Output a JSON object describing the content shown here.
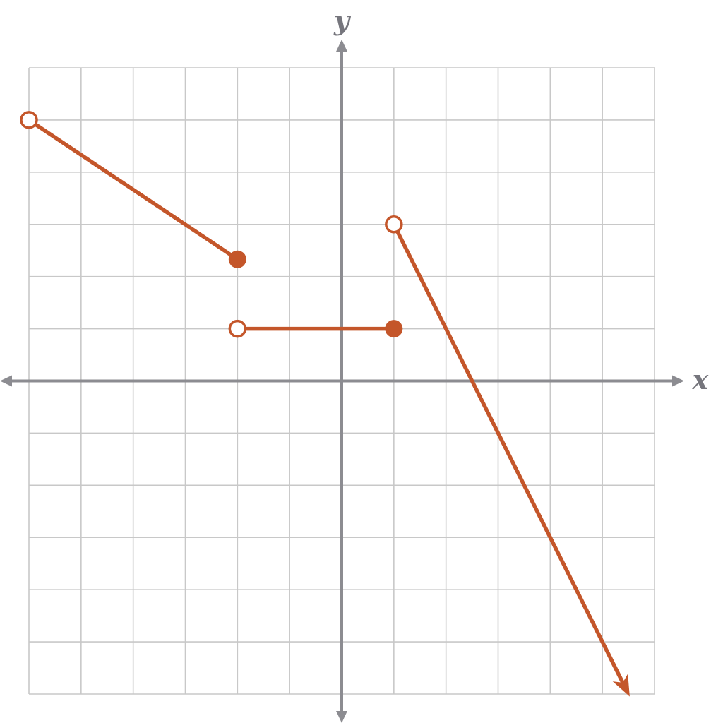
{
  "chart_data": {
    "type": "line",
    "title": "",
    "xlabel": "x",
    "ylabel": "y",
    "xlim": [
      -6,
      6
    ],
    "ylim": [
      -6,
      6
    ],
    "grid": true,
    "tick_labels": false,
    "series": [
      {
        "segments": [
          {
            "x": [
              -6,
              -2
            ],
            "y": [
              5,
              2.33
            ],
            "start": "open",
            "end": "closed"
          },
          {
            "x": [
              -2,
              1
            ],
            "y": [
              1,
              1
            ],
            "start": "open",
            "end": "closed"
          },
          {
            "x": [
              1,
              5.5
            ],
            "y": [
              3,
              -6
            ],
            "start": "open",
            "end": "arrow"
          }
        ]
      }
    ]
  },
  "colors": {
    "curve": "#c4562a",
    "grid": "#c8c8c8",
    "axis": "#8c8c91",
    "axis_label": "#76767d"
  }
}
